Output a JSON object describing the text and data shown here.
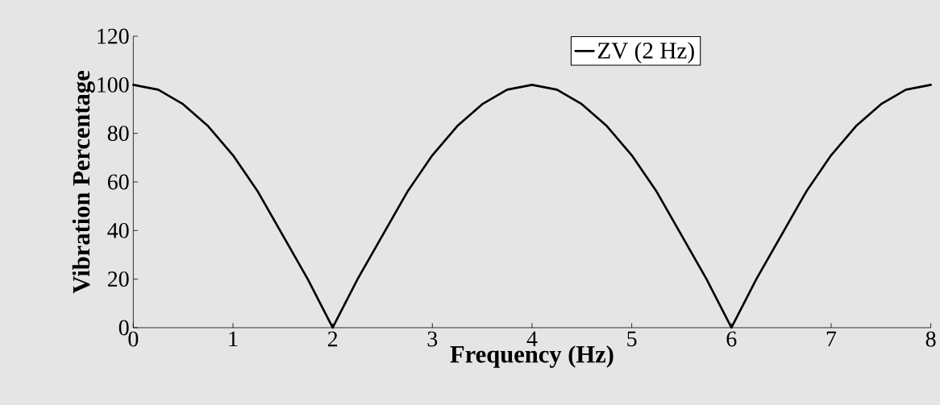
{
  "chart_data": {
    "type": "line",
    "xlabel": "Frequency (Hz)",
    "ylabel": "Vibration Percentage",
    "xlim": [
      0,
      8
    ],
    "ylim": [
      0,
      120
    ],
    "xticks": [
      0,
      1,
      2,
      3,
      4,
      5,
      6,
      7,
      8
    ],
    "yticks": [
      0,
      20,
      40,
      60,
      80,
      100,
      120
    ],
    "legend": "top",
    "series": [
      {
        "name": "ZV (2 Hz)",
        "color": "#000000",
        "x": [
          0,
          0.25,
          0.5,
          0.75,
          1,
          1.25,
          1.5,
          1.75,
          2,
          2.25,
          2.5,
          2.75,
          3,
          3.25,
          3.5,
          3.75,
          4,
          4.25,
          4.5,
          4.75,
          5,
          5.25,
          5.5,
          5.75,
          6,
          6.25,
          6.5,
          6.75,
          7,
          7.25,
          7.5,
          7.75,
          8
        ],
        "values": [
          100,
          98,
          92,
          83,
          71,
          56,
          38,
          20,
          0,
          20,
          38,
          56,
          71,
          83,
          92,
          98,
          100,
          98,
          92,
          83,
          71,
          56,
          38,
          20,
          0,
          20,
          38,
          56,
          71,
          83,
          92,
          98,
          100
        ]
      }
    ]
  }
}
